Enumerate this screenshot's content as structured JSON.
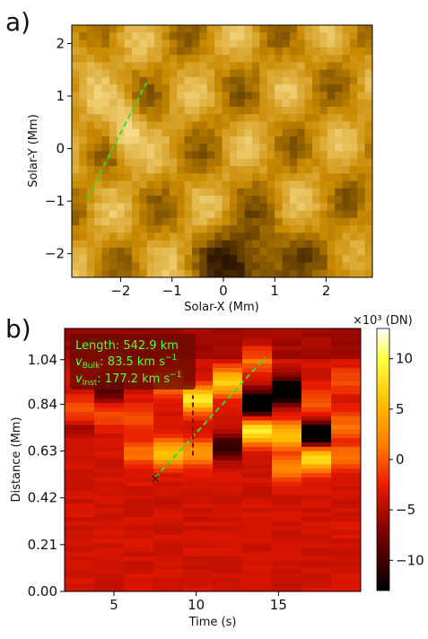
{
  "panel_a": {
    "label": "a)",
    "chart_data": {
      "type": "heatmap",
      "xlabel": "Solar-X (Mm)",
      "ylabel": "Solar-Y (Mm)",
      "xlim": [
        -2.95,
        2.9
      ],
      "ylim": [
        -2.45,
        2.35
      ],
      "xticks": [
        -2,
        -1,
        0,
        1,
        2
      ],
      "yticks": [
        -2,
        -1,
        0,
        1,
        2
      ],
      "xtick_labels": [
        "−2",
        "−1",
        "0",
        "1",
        "2"
      ],
      "ytick_labels": [
        "−2",
        "−1",
        "0",
        "1",
        "2"
      ],
      "colormap": "gold",
      "colors": {
        "dark": "#2a1500",
        "mid": "#c98a00",
        "bright": "#ffe9a0"
      },
      "slit_line": {
        "color": "#33dd33",
        "x": [
          -2.65,
          -1.5
        ],
        "y": [
          -0.95,
          1.25
        ]
      }
    }
  },
  "panel_b": {
    "label": "b)",
    "chart_data": {
      "type": "heatmap",
      "xlabel": "Time (s)",
      "ylabel": "Distance (Mm)",
      "xlim": [
        2,
        20
      ],
      "ylim": [
        0,
        1.18
      ],
      "xticks": [
        5,
        10,
        15
      ],
      "xtick_labels": [
        "5",
        "10",
        "15"
      ],
      "yticks": [
        0.0,
        0.21,
        0.42,
        0.63,
        0.84,
        1.04
      ],
      "ytick_labels": [
        "0.00",
        "0.21",
        "0.42",
        "0.63",
        "0.84",
        "1.04"
      ],
      "columns_time": [
        3.2,
        5.0,
        6.7,
        8.5,
        10.2,
        12.0,
        13.8,
        15.5,
        17.3,
        19.0
      ],
      "colorbar": {
        "title": "×10³ (DN)",
        "range": [
          -13,
          13
        ],
        "ticks": [
          10,
          5,
          0,
          -5,
          -10
        ],
        "tick_labels": [
          "10",
          "5",
          "0",
          "−5",
          "−10"
        ]
      },
      "fit_line": {
        "color": "#33dd33",
        "x": [
          7.5,
          14.2
        ],
        "y": [
          0.51,
          1.05
        ]
      },
      "start_marker": {
        "x": 7.5,
        "y": 0.51,
        "symbol": "×",
        "color": "#2233aa"
      },
      "vertical_marker": {
        "x": 9.8,
        "y": [
          0.61,
          0.88
        ],
        "color": "#7a1010"
      },
      "annotation": {
        "length": "Length: 542.9 km",
        "v_bulk_sub": "Bulk",
        "v_bulk_value": ": 83.5 km s",
        "v_inst_sub": "Inst",
        "v_inst_value": ": 177.2 km s",
        "v_symbol": "v",
        "exponent": "−1"
      }
    }
  }
}
